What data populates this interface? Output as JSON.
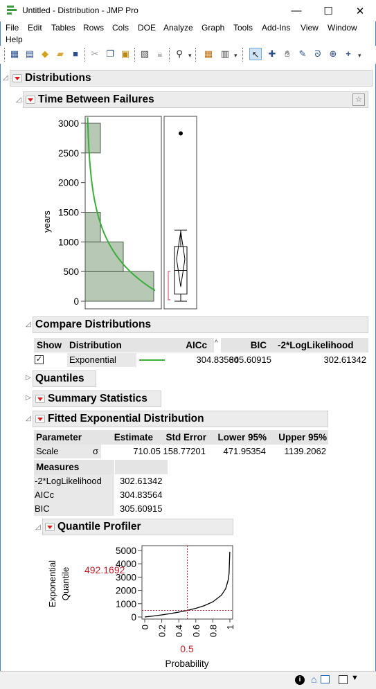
{
  "window": {
    "title": "Untitled - Distribution - JMP Pro",
    "minimize": "—",
    "maximize": "☐",
    "close": "✕"
  },
  "menu": [
    "File",
    "Edit",
    "Tables",
    "Rows",
    "Cols",
    "DOE",
    "Analyze",
    "Graph",
    "Tools",
    "Add-Ins",
    "View",
    "Window",
    "Help"
  ],
  "toolbar_icons": [
    "new-table-icon",
    "new-script-icon",
    "python-icon",
    "open-icon",
    "save-icon",
    "cut-icon",
    "copy-icon",
    "paste-icon",
    "journal-icon",
    "lock-icon",
    "search-icon",
    "data-table-icon",
    "columns-icon",
    "arrow-tool-icon",
    "crosshair-tool-icon",
    "hand-tool-icon",
    "brush-tool-icon",
    "lasso-tool-icon",
    "zoom-tool-icon",
    "plus-tool-icon"
  ],
  "report": {
    "title": "Distributions",
    "variable": "Time Between Failures",
    "histogram": {
      "ylabel": "years",
      "yticks": [
        "3000",
        "2500",
        "2000",
        "1500",
        "1000",
        "500",
        "0"
      ]
    },
    "compare": {
      "title": "Compare Distributions",
      "headers": [
        "Show",
        "Distribution",
        "AICc",
        "BIC",
        "-2*LogLikelihood"
      ],
      "sort_indicator": "^",
      "row": {
        "show_mark": "✓",
        "distribution": "Exponential",
        "aicc": "304.83564",
        "bic": "305.60915",
        "loglik": "302.61342"
      }
    },
    "quantiles_title": "Quantiles",
    "summary_title": "Summary Statistics",
    "fitted": {
      "title": "Fitted Exponential Distribution",
      "headers": [
        "Parameter",
        "Estimate",
        "Std Error",
        "Lower 95%",
        "Upper 95%"
      ],
      "row": {
        "parameter": "Scale",
        "symbol": "σ",
        "estimate": "710.05",
        "std_error": "158.77201",
        "lower": "471.95354",
        "upper": "1139.2062"
      },
      "measures_header": "Measures",
      "measures": [
        {
          "label": "-2*LogLikelihood",
          "value": "302.61342"
        },
        {
          "label": "AICc",
          "value": "304.83564"
        },
        {
          "label": "BIC",
          "value": "305.60915"
        }
      ]
    },
    "profiler": {
      "title": "Quantile Profiler",
      "ylabel1": "Exponential",
      "ylabel2": "Quantile",
      "current_y": "492.1692",
      "current_x": "0.5",
      "xlabel": "Probability",
      "yticks": [
        "5000",
        "4000",
        "3000",
        "2000",
        "1000",
        "0"
      ],
      "xticks": [
        "0",
        "0.2",
        "0.4",
        "0.6",
        "0.8",
        "1"
      ]
    }
  },
  "chart_data": [
    {
      "type": "bar",
      "orientation": "horizontal",
      "ylabel": "years",
      "ylim": [
        0,
        3000
      ],
      "bins": [
        {
          "from": 0,
          "to": 500,
          "count": 9
        },
        {
          "from": 500,
          "to": 1000,
          "count": 5
        },
        {
          "from": 1000,
          "to": 1500,
          "count": 2
        },
        {
          "from": 2500,
          "to": 3000,
          "count": 2
        }
      ],
      "fit_curve": "Exponential",
      "box_plot": {
        "min": 0,
        "q1": 120,
        "median": 520,
        "q3": 920,
        "max": 1200,
        "mean": 710,
        "outliers": [
          2830
        ]
      }
    },
    {
      "type": "line",
      "xlabel": "Probability",
      "ylabel": "Exponential Quantile",
      "xlim": [
        0,
        1
      ],
      "ylim": [
        0,
        5000
      ],
      "x": [
        0,
        0.1,
        0.2,
        0.3,
        0.4,
        0.5,
        0.6,
        0.7,
        0.8,
        0.9,
        0.95,
        0.98,
        0.99,
        0.999
      ],
      "y": [
        0,
        74.8,
        158.4,
        253.3,
        362.7,
        492.2,
        650.6,
        854.9,
        1142.8,
        1635.0,
        2127.1,
        2777.8,
        3269.9,
        4904.8
      ],
      "crosshair": {
        "x": 0.5,
        "y": 492.1692
      },
      "colors": {
        "crosshair": "#c0202a"
      }
    }
  ],
  "statusbar": {
    "icons": [
      "info-icon",
      "home-icon",
      "window-icon"
    ]
  }
}
